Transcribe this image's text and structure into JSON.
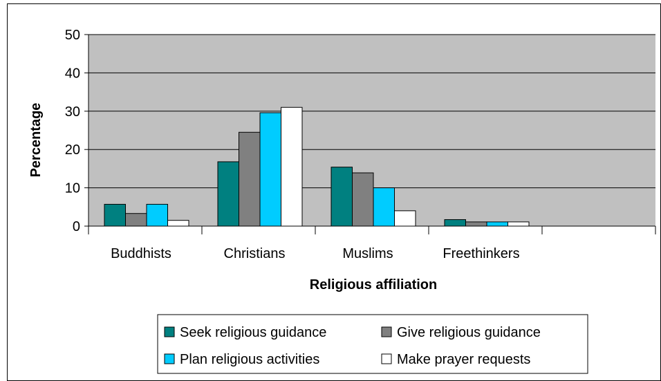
{
  "chart_data": {
    "type": "bar",
    "title": "",
    "xlabel": "Religious affiliation",
    "ylabel": "Percentage",
    "ylim": [
      0,
      50
    ],
    "yticks": [
      0,
      10,
      20,
      30,
      40,
      50
    ],
    "grid": true,
    "legend_position": "bottom",
    "categories": [
      "Buddhists",
      "Christians",
      "Muslims",
      "Freethinkers"
    ],
    "series": [
      {
        "name": "Seek religious guidance",
        "color": "#008080",
        "values": [
          5.7,
          16.8,
          15.4,
          1.7
        ]
      },
      {
        "name": "Give religious guidance",
        "color": "#808080",
        "values": [
          3.3,
          24.5,
          13.9,
          1.1
        ]
      },
      {
        "name": "Plan religious activities",
        "color": "#00ccff",
        "values": [
          5.7,
          29.6,
          10.0,
          1.1
        ]
      },
      {
        "name": "Make prayer requests",
        "color": "#ffffff",
        "values": [
          1.5,
          31.0,
          4.0,
          1.1
        ]
      }
    ]
  },
  "style": {
    "plot_background": "#c0c0c0",
    "gridline_color": "#000000"
  }
}
